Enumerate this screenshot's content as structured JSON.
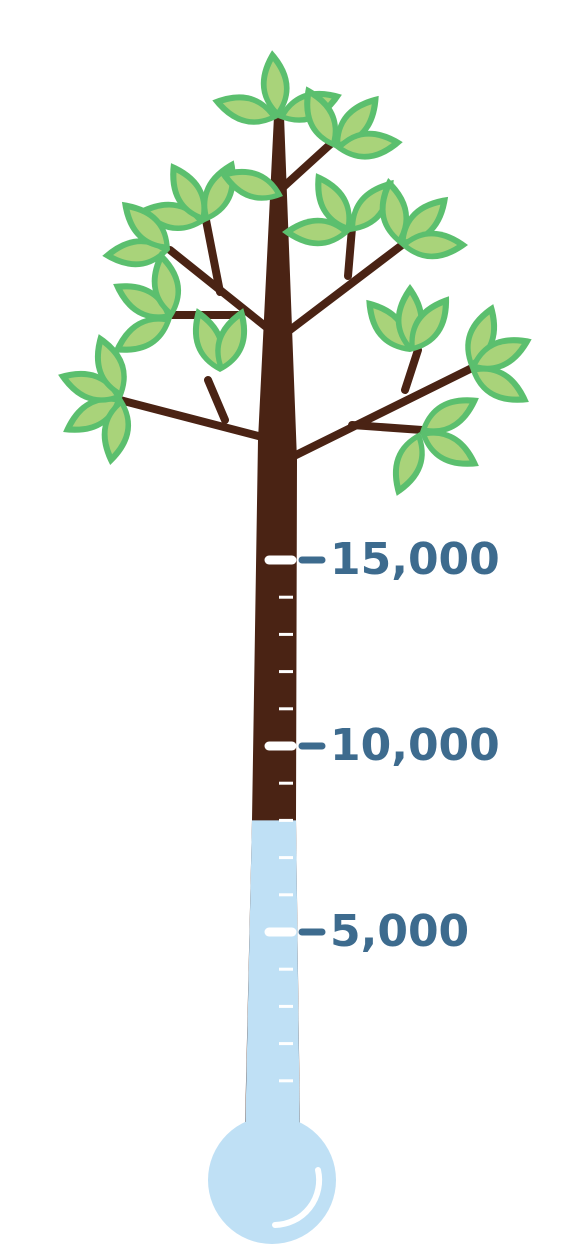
{
  "chart_data": {
    "type": "thermometer",
    "value": 8000,
    "ylim": [
      0,
      15000
    ],
    "yticks": [
      {
        "value": 5000,
        "label": "5,000"
      },
      {
        "value": 10000,
        "label": "10,000"
      },
      {
        "value": 15000,
        "label": "15,000"
      }
    ],
    "minor_yticks": [
      1000,
      2000,
      3000,
      4000,
      6000,
      7000,
      8000,
      9000,
      11000,
      12000,
      13000,
      14000
    ],
    "colors": {
      "fill": "#bfe0f5",
      "trunk": "#4a2314",
      "label": "#3d6b8e"
    }
  }
}
